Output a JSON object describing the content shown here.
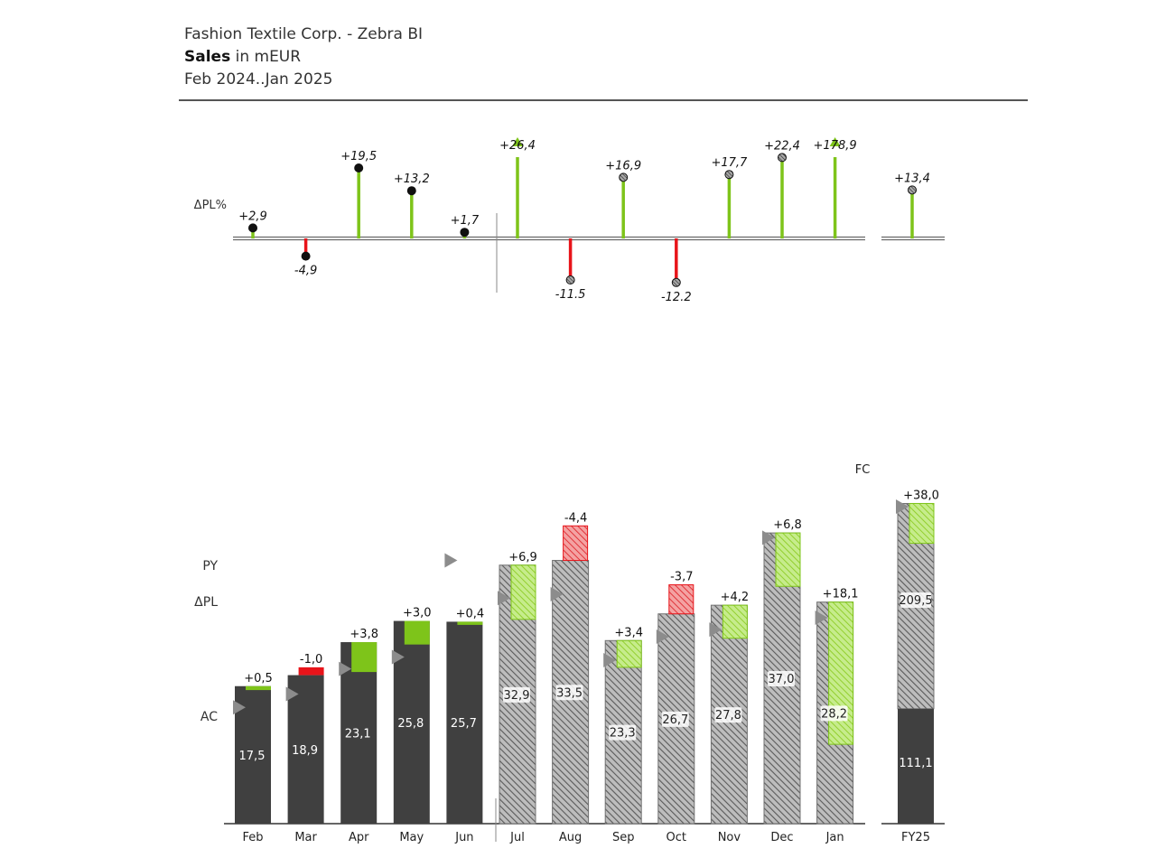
{
  "header": {
    "company": "Fashion Textile Corp. - Zebra BI",
    "measure_bold": "Sales",
    "measure_rest": " in mEUR",
    "period": "Feb 2024..Jan 2025"
  },
  "colors": {
    "actual": "#404040",
    "forecast_stroke": "#707070",
    "positive": "#7ec41a",
    "negative": "#e8141a",
    "py_marker": "#8c8c8c"
  },
  "chart_data": {
    "type": "bar",
    "subtype": "variance-column (IBCS) with relative-variance pin chart",
    "unit": "mEUR",
    "row_labels": {
      "pct": "ΔPL%",
      "py": "PY",
      "dpl": "ΔPL",
      "ac": "AC",
      "fc": "FC"
    },
    "categories": [
      "Feb",
      "Mar",
      "Apr",
      "May",
      "Jun",
      "Jul",
      "Aug",
      "Sep",
      "Oct",
      "Nov",
      "Dec",
      "Jan"
    ],
    "scenario": [
      "AC",
      "AC",
      "AC",
      "AC",
      "AC",
      "FC",
      "FC",
      "FC",
      "FC",
      "FC",
      "FC",
      "FC"
    ],
    "values_AC_FC": [
      17.5,
      18.9,
      23.1,
      25.8,
      25.7,
      32.9,
      33.5,
      23.3,
      26.7,
      27.8,
      37.0,
      28.2
    ],
    "values_label": [
      "17,5",
      "18,9",
      "23,1",
      "25,8",
      "25,7",
      "32,9",
      "33,5",
      "23,3",
      "26,7",
      "27,8",
      "37,0",
      "28,2"
    ],
    "delta_PL": [
      0.5,
      -1.0,
      3.8,
      3.0,
      0.4,
      6.9,
      -4.4,
      3.4,
      -3.7,
      4.2,
      6.8,
      18.1
    ],
    "delta_PL_label": [
      "+0,5",
      "-1,0",
      "+3,8",
      "+3,0",
      "+0,4",
      "+6,9",
      "-4,4",
      "+3,4",
      "-3,7",
      "+4,2",
      "+6,8",
      "+18,1"
    ],
    "PY": [
      14.8,
      16.5,
      19.7,
      21.2,
      33.5,
      28.7,
      29.2,
      20.8,
      23.8,
      24.7,
      36.4,
      26.2
    ],
    "delta_PL_pct": [
      2.9,
      -4.9,
      19.5,
      13.2,
      1.7,
      26.4,
      -11.5,
      16.9,
      -12.2,
      17.7,
      22.4,
      178.9
    ],
    "delta_PL_pct_label": [
      "+2,9",
      "-4,9",
      "+19,5",
      "+13,2",
      "+1,7",
      "+26,4",
      "-11.5",
      "+16,9",
      "-12.2",
      "+17,7",
      "+22,4",
      "+178,9"
    ],
    "total": {
      "category": "FY25",
      "AC": 111.1,
      "AC_label": "111,1",
      "FC": 209.5,
      "FC_label": "209,5",
      "delta_PL": 38.0,
      "delta_PL_label": "+38,0",
      "delta_PL_pct": 13.4,
      "delta_PL_pct_label": "+13,4"
    }
  }
}
